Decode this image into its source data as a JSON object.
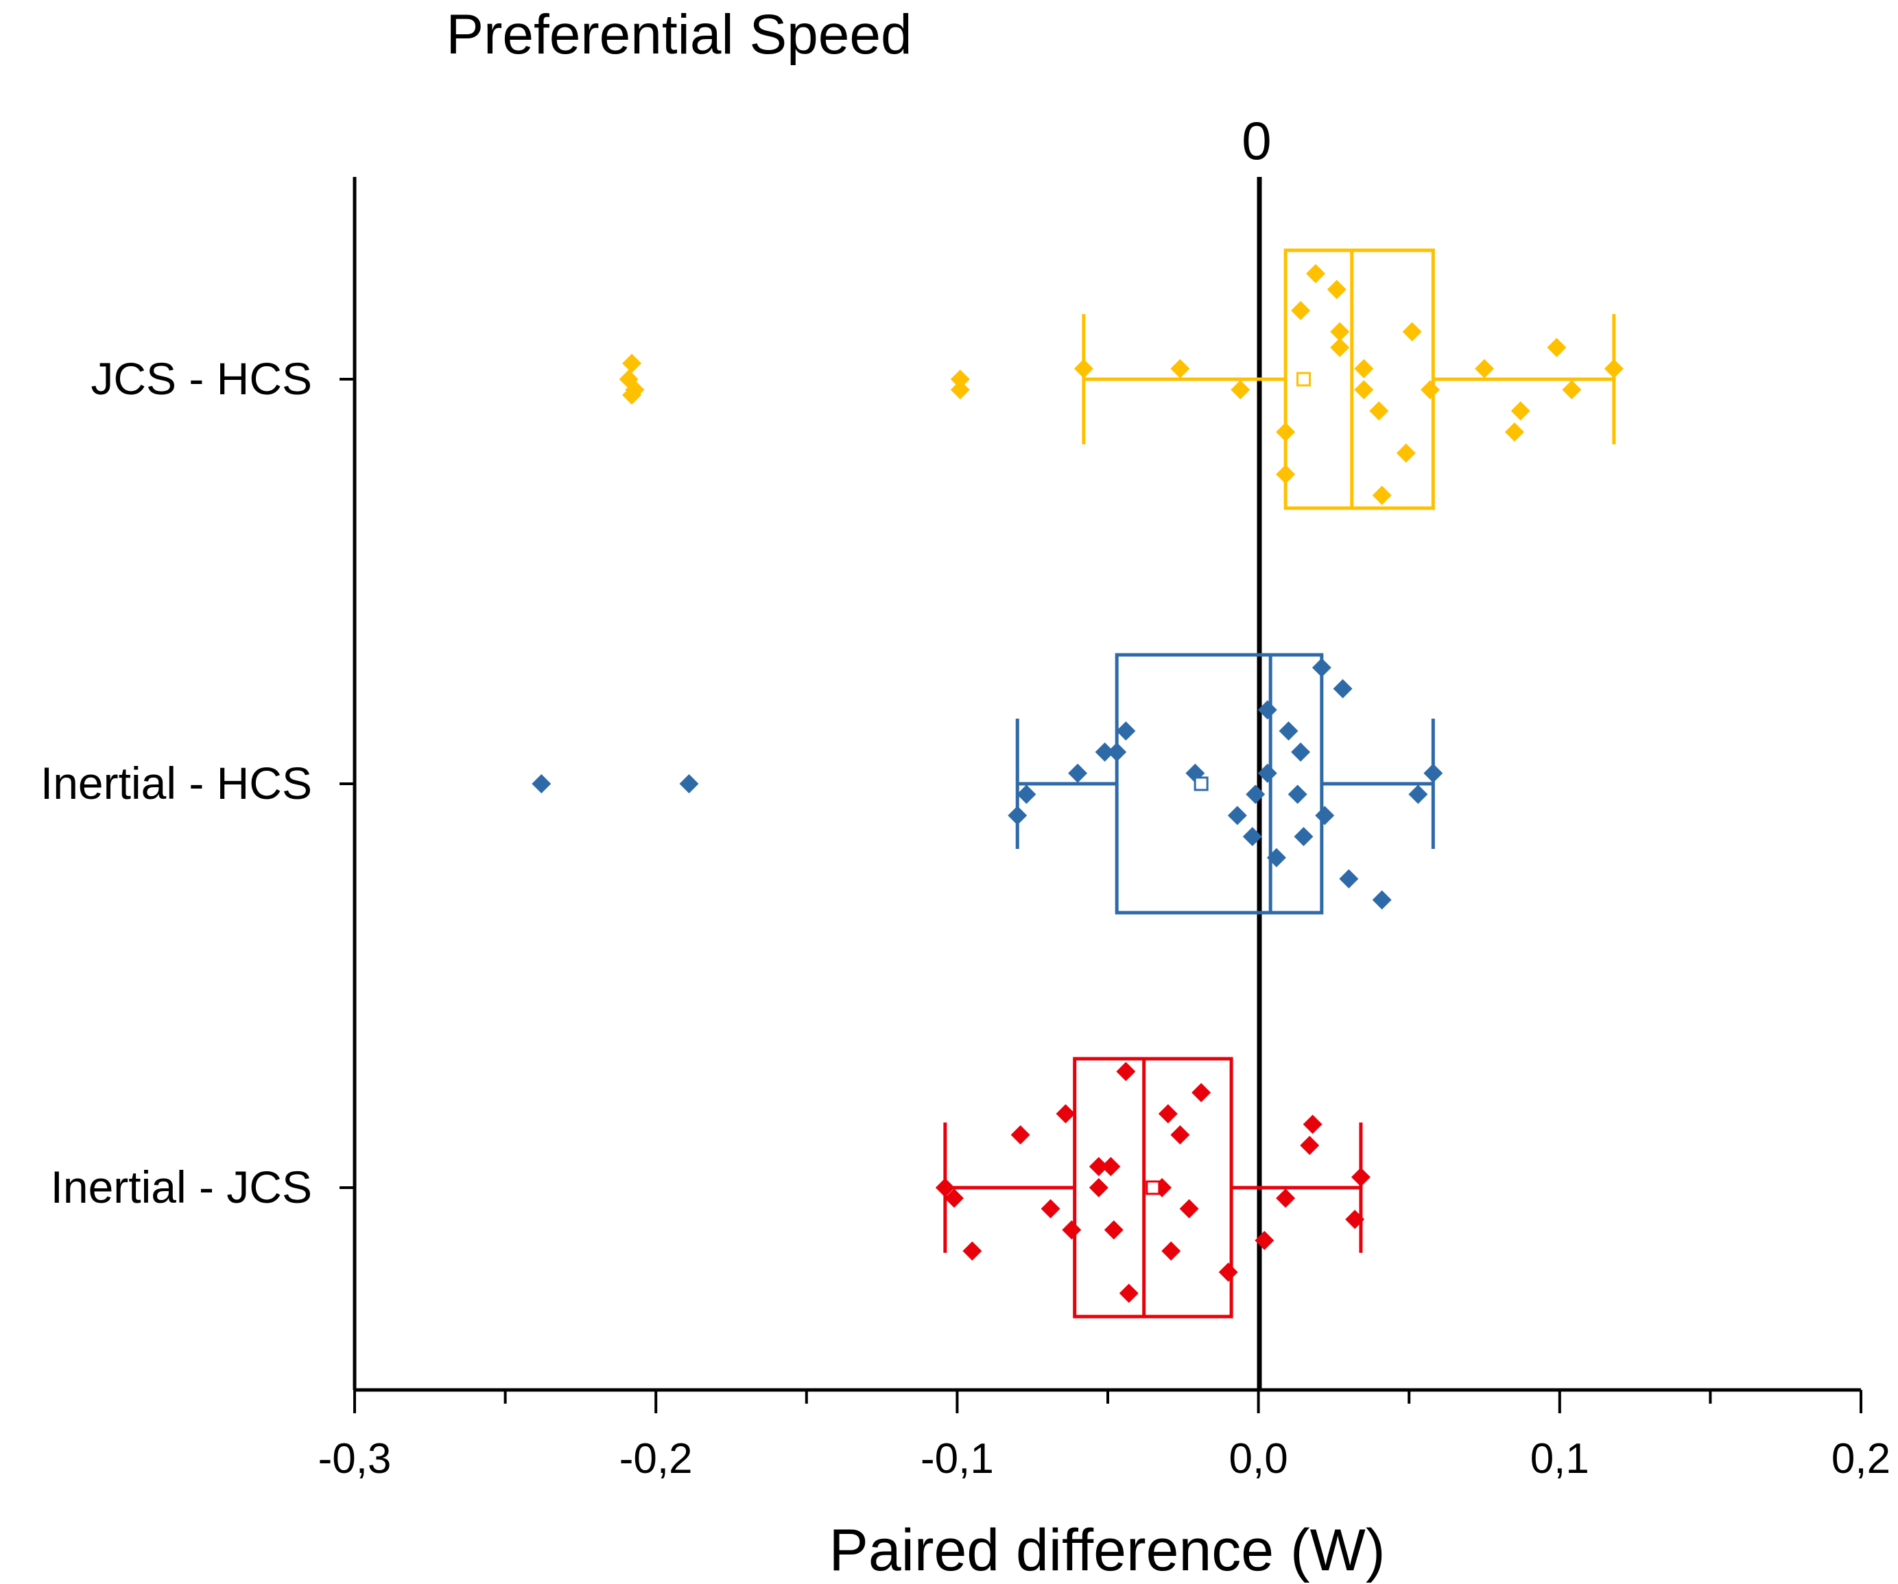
{
  "chart_data": {
    "type": "box",
    "title": "Preferential Speed",
    "xlabel": "Paired difference (W)",
    "ylabel": "",
    "xlim": [
      -0.3,
      0.2
    ],
    "x_ticks": [
      "-0,3",
      "-0,2",
      "-0,1",
      "0,0",
      "0,1",
      "0,2"
    ],
    "x_tick_values": [
      -0.3,
      -0.2,
      -0.1,
      0.0,
      0.1,
      0.2
    ],
    "zero_line_label": "0",
    "orientation": "horizontal",
    "categories": [
      "JCS - HCS",
      "Inertial - HCS",
      "Inertial - JCS"
    ],
    "series": [
      {
        "category": "JCS - HCS",
        "color": "#FFC000",
        "box": {
          "q1": 0.009,
          "median": 0.031,
          "q3": 0.058,
          "mean": 0.015,
          "whisker_low": -0.058,
          "whisker_high": 0.118
        },
        "points": [
          {
            "x": -0.209,
            "offset": 0.0
          },
          {
            "x": -0.208,
            "offset": -0.15
          },
          {
            "x": -0.208,
            "offset": 0.15
          },
          {
            "x": -0.207,
            "offset": 0.1
          },
          {
            "x": -0.099,
            "offset": 0.0
          },
          {
            "x": -0.099,
            "offset": 0.1
          },
          {
            "x": -0.058,
            "offset": -0.1
          },
          {
            "x": -0.026,
            "offset": -0.1
          },
          {
            "x": -0.006,
            "offset": 0.1
          },
          {
            "x": 0.019,
            "offset": -1.0
          },
          {
            "x": 0.026,
            "offset": -0.85
          },
          {
            "x": 0.014,
            "offset": -0.65
          },
          {
            "x": 0.027,
            "offset": -0.45
          },
          {
            "x": 0.051,
            "offset": -0.45
          },
          {
            "x": 0.027,
            "offset": -0.3
          },
          {
            "x": 0.035,
            "offset": -0.1
          },
          {
            "x": 0.035,
            "offset": 0.1
          },
          {
            "x": 0.057,
            "offset": 0.1
          },
          {
            "x": 0.04,
            "offset": 0.3
          },
          {
            "x": 0.009,
            "offset": 0.5
          },
          {
            "x": 0.049,
            "offset": 0.7
          },
          {
            "x": 0.009,
            "offset": 0.9
          },
          {
            "x": 0.041,
            "offset": 1.1
          },
          {
            "x": 0.075,
            "offset": -0.1
          },
          {
            "x": 0.099,
            "offset": -0.3
          },
          {
            "x": 0.104,
            "offset": 0.1
          },
          {
            "x": 0.087,
            "offset": 0.3
          },
          {
            "x": 0.085,
            "offset": 0.5
          },
          {
            "x": 0.118,
            "offset": -0.1
          }
        ]
      },
      {
        "category": "Inertial - HCS",
        "color": "#2E6AA8",
        "box": {
          "q1": -0.047,
          "median": 0.004,
          "q3": 0.021,
          "mean": -0.019,
          "whisker_low": -0.08,
          "whisker_high": 0.058
        },
        "points": [
          {
            "x": -0.238,
            "offset": 0.0
          },
          {
            "x": -0.189,
            "offset": 0.0
          },
          {
            "x": 0.021,
            "offset": -1.1
          },
          {
            "x": 0.028,
            "offset": -0.9
          },
          {
            "x": 0.003,
            "offset": -0.7
          },
          {
            "x": -0.044,
            "offset": -0.5
          },
          {
            "x": 0.01,
            "offset": -0.5
          },
          {
            "x": -0.051,
            "offset": -0.3
          },
          {
            "x": -0.047,
            "offset": -0.3
          },
          {
            "x": 0.014,
            "offset": -0.3
          },
          {
            "x": -0.06,
            "offset": -0.1
          },
          {
            "x": -0.021,
            "offset": -0.1
          },
          {
            "x": 0.003,
            "offset": -0.1
          },
          {
            "x": 0.058,
            "offset": -0.1
          },
          {
            "x": -0.077,
            "offset": 0.1
          },
          {
            "x": -0.001,
            "offset": 0.1
          },
          {
            "x": 0.013,
            "offset": 0.1
          },
          {
            "x": 0.053,
            "offset": 0.1
          },
          {
            "x": -0.08,
            "offset": 0.3
          },
          {
            "x": -0.007,
            "offset": 0.3
          },
          {
            "x": 0.022,
            "offset": 0.3
          },
          {
            "x": -0.002,
            "offset": 0.5
          },
          {
            "x": 0.015,
            "offset": 0.5
          },
          {
            "x": 0.006,
            "offset": 0.7
          },
          {
            "x": 0.03,
            "offset": 0.9
          },
          {
            "x": 0.041,
            "offset": 1.1
          }
        ]
      },
      {
        "category": "Inertial - JCS",
        "color": "#E8000B",
        "box": {
          "q1": -0.061,
          "median": -0.038,
          "q3": -0.009,
          "mean": -0.035,
          "whisker_low": -0.104,
          "whisker_high": 0.034
        },
        "points": [
          {
            "x": -0.044,
            "offset": -1.1
          },
          {
            "x": -0.019,
            "offset": -0.9
          },
          {
            "x": -0.064,
            "offset": -0.7
          },
          {
            "x": -0.03,
            "offset": -0.7
          },
          {
            "x": 0.018,
            "offset": -0.6
          },
          {
            "x": -0.079,
            "offset": -0.5
          },
          {
            "x": -0.026,
            "offset": -0.5
          },
          {
            "x": 0.017,
            "offset": -0.4
          },
          {
            "x": -0.053,
            "offset": -0.2
          },
          {
            "x": -0.049,
            "offset": -0.2
          },
          {
            "x": -0.104,
            "offset": 0.0
          },
          {
            "x": -0.053,
            "offset": 0.0
          },
          {
            "x": -0.032,
            "offset": 0.0
          },
          {
            "x": 0.034,
            "offset": -0.1
          },
          {
            "x": -0.101,
            "offset": 0.1
          },
          {
            "x": 0.009,
            "offset": 0.1
          },
          {
            "x": -0.069,
            "offset": 0.2
          },
          {
            "x": -0.023,
            "offset": 0.2
          },
          {
            "x": 0.032,
            "offset": 0.3
          },
          {
            "x": -0.062,
            "offset": 0.4
          },
          {
            "x": -0.048,
            "offset": 0.4
          },
          {
            "x": 0.002,
            "offset": 0.5
          },
          {
            "x": -0.095,
            "offset": 0.6
          },
          {
            "x": -0.029,
            "offset": 0.6
          },
          {
            "x": -0.01,
            "offset": 0.8
          },
          {
            "x": -0.043,
            "offset": 1.0
          }
        ]
      }
    ],
    "grid": false,
    "legend": "none"
  }
}
